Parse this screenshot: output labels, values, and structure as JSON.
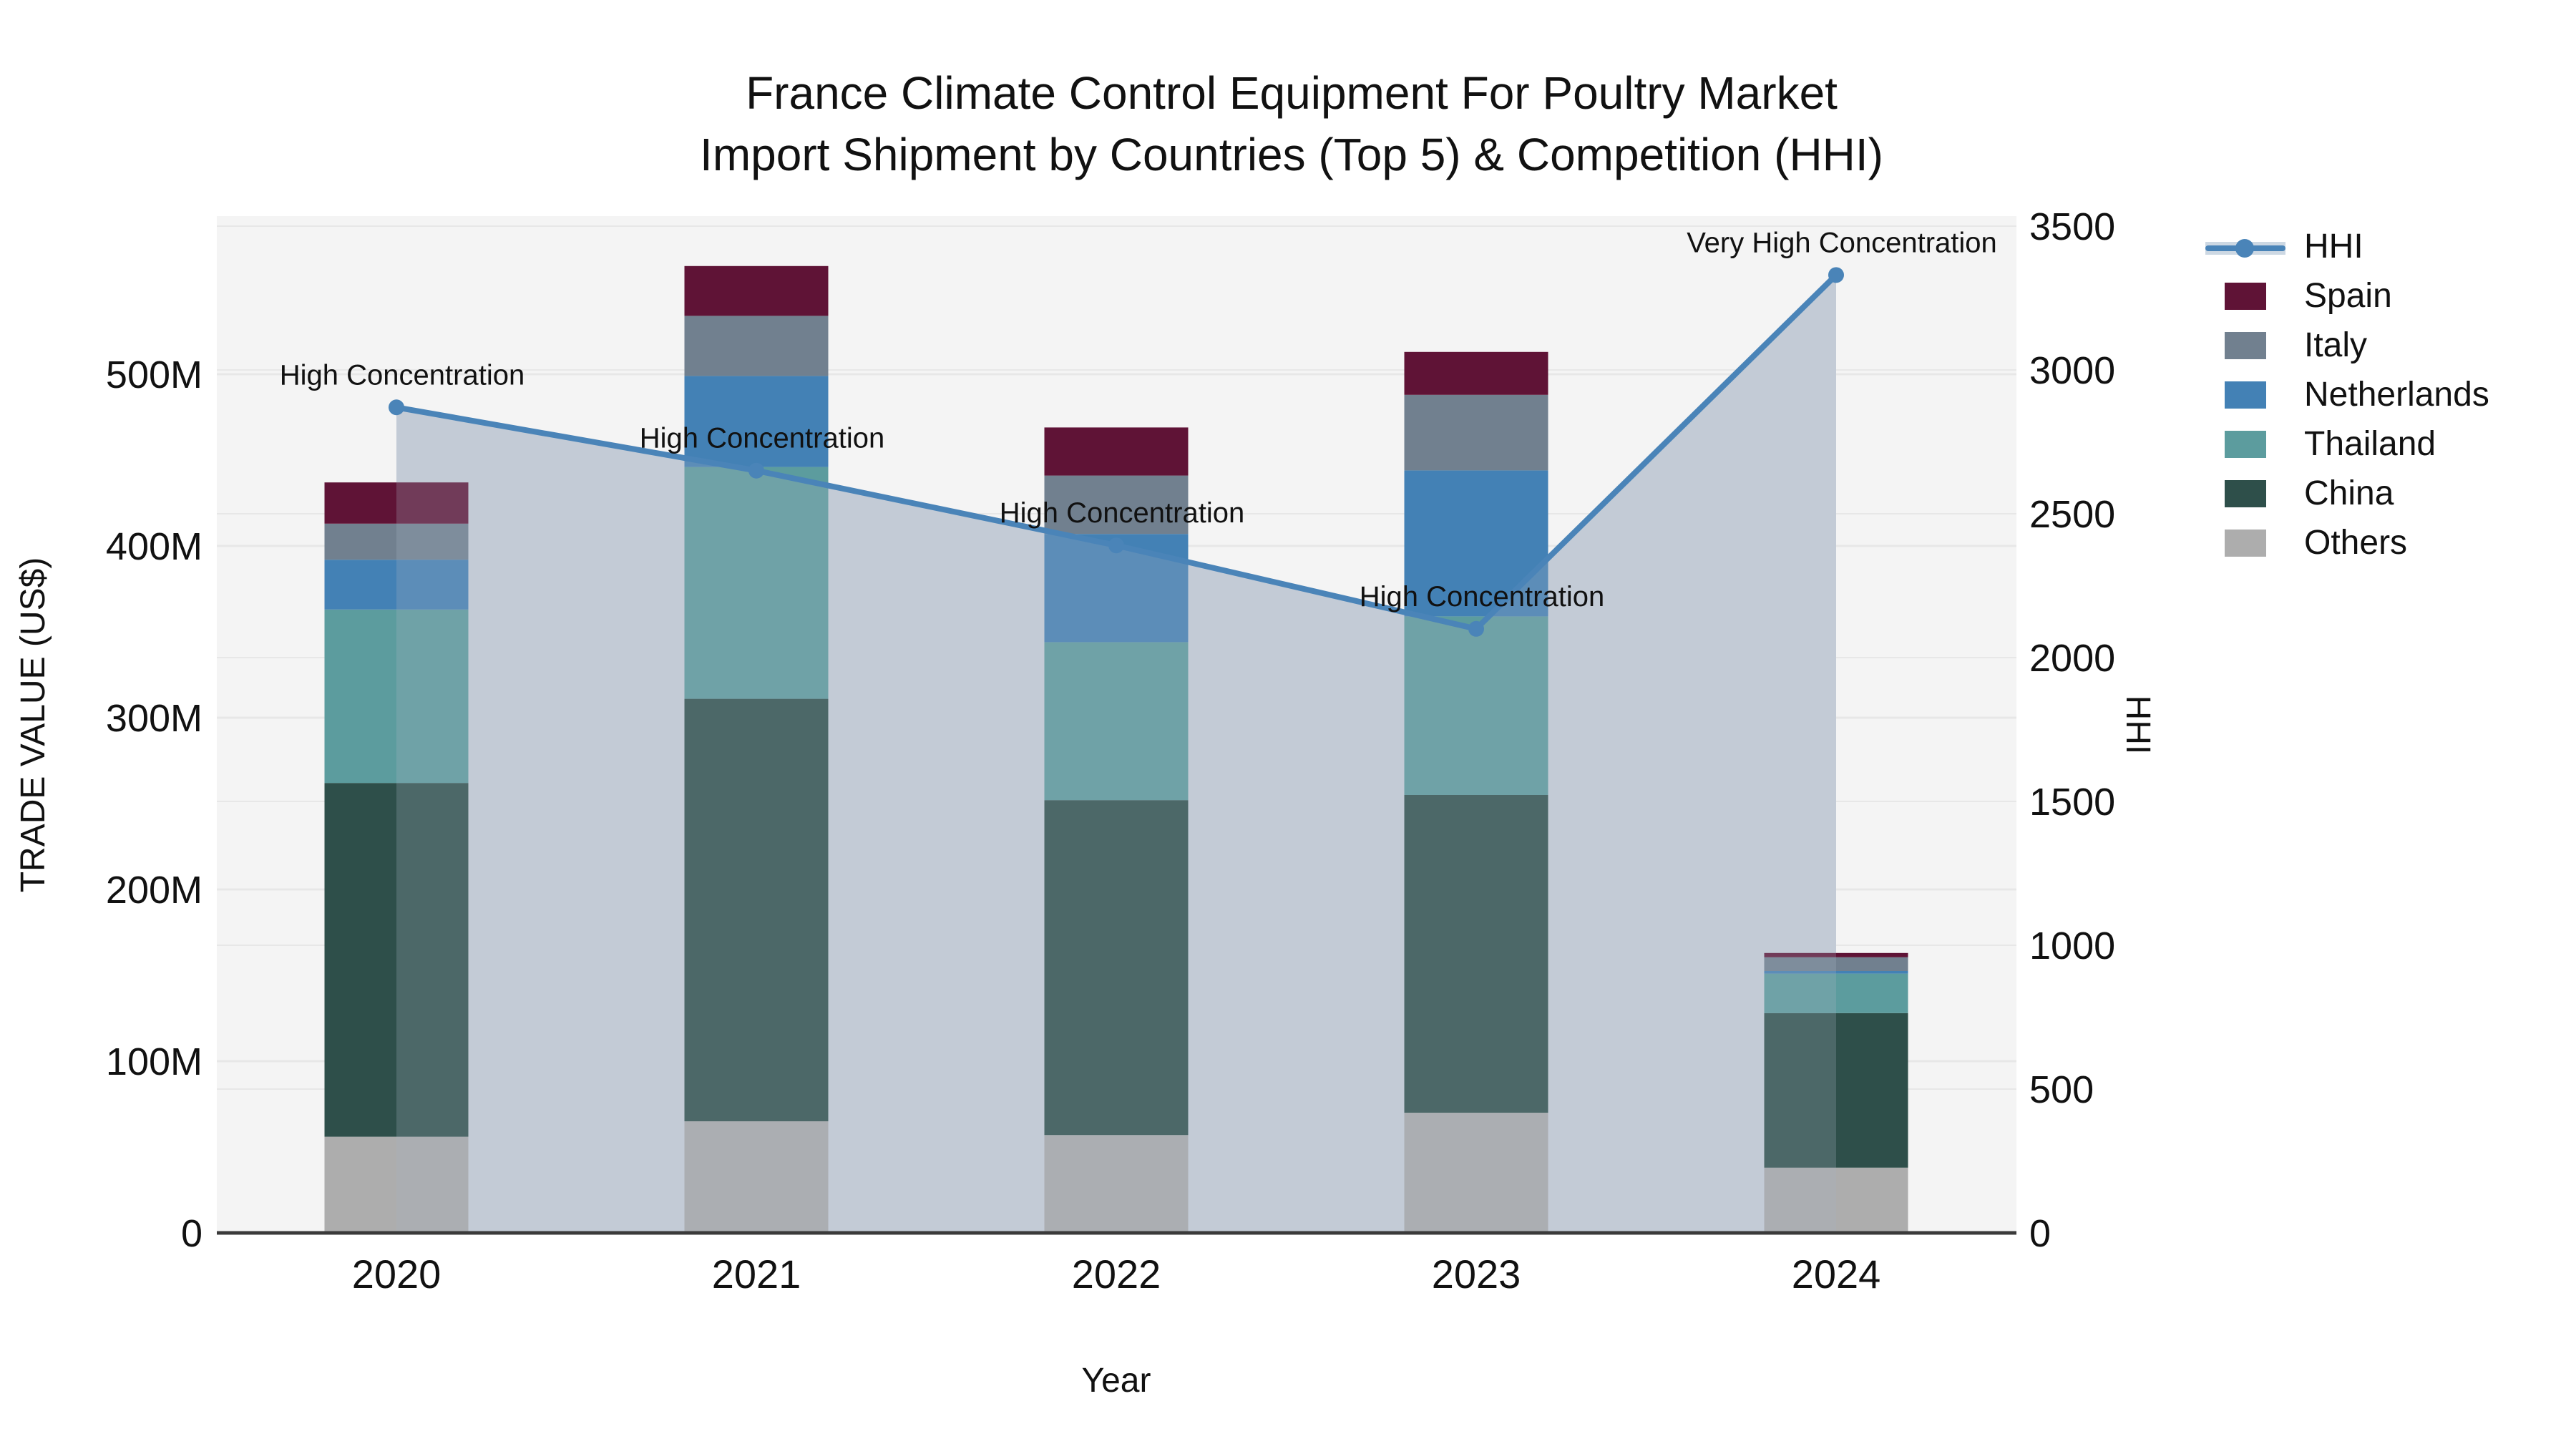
{
  "title": {
    "line1": "France Climate Control Equipment For Poultry Market",
    "line2": "Import Shipment by Countries (Top 5) & Competition (HHI)"
  },
  "axes": {
    "y_left_label": "TRADE VALUE (US$)",
    "y_right_label": "HHI",
    "x_label": "Year",
    "y_left_ticks": [
      {
        "value": 0,
        "label": "0"
      },
      {
        "value": 100,
        "label": "100M"
      },
      {
        "value": 200,
        "label": "200M"
      },
      {
        "value": 300,
        "label": "300M"
      },
      {
        "value": 400,
        "label": "400M"
      },
      {
        "value": 500,
        "label": "500M"
      }
    ],
    "y_right_ticks": [
      {
        "value": 0,
        "label": "0"
      },
      {
        "value": 500,
        "label": "500"
      },
      {
        "value": 1000,
        "label": "1000"
      },
      {
        "value": 1500,
        "label": "1500"
      },
      {
        "value": 2000,
        "label": "2000"
      },
      {
        "value": 2500,
        "label": "2500"
      },
      {
        "value": 3000,
        "label": "3000"
      },
      {
        "value": 3500,
        "label": "3500"
      }
    ]
  },
  "colors": {
    "spain": "#5F1336",
    "italy": "#71808F",
    "netherlands": "#4381B5",
    "thailand": "#5C9C9E",
    "china": "#2E4F4A",
    "others": "#ADADAD",
    "hhi_line": "#4A84B8",
    "area_fill": "#CDD3DC",
    "area_overlay": "rgba(166,178,196,0.25)",
    "plot_bg": "#F4F4F4",
    "gridline": "#E7E7E7",
    "axis_line": "#3A3A3A"
  },
  "legend": {
    "items": [
      {
        "label": "HHI",
        "type": "line",
        "color": "#4A84B8"
      },
      {
        "label": "Spain",
        "type": "swatch",
        "color": "#5F1336"
      },
      {
        "label": "Italy",
        "type": "swatch",
        "color": "#71808F"
      },
      {
        "label": "Netherlands",
        "type": "swatch",
        "color": "#4381B5"
      },
      {
        "label": "Thailand",
        "type": "swatch",
        "color": "#5C9C9E"
      },
      {
        "label": "China",
        "type": "swatch",
        "color": "#2E4F4A"
      },
      {
        "label": "Others",
        "type": "swatch",
        "color": "#ADADAD"
      }
    ]
  },
  "chart_data": {
    "type": "bar",
    "subtype": "stacked-bar-with-line",
    "title": "France Climate Control Equipment For Poultry Market\nImport Shipment by Countries (Top 5) & Competition (HHI)",
    "xlabel": "Year",
    "ylabel_left": "TRADE VALUE (US$)",
    "ylabel_right": "HHI",
    "categories": [
      "2020",
      "2021",
      "2022",
      "2023",
      "2024"
    ],
    "series": [
      {
        "name": "Others",
        "color": "#ADADAD",
        "values": [
          56,
          65,
          57,
          70,
          38
        ]
      },
      {
        "name": "China",
        "color": "#2E4F4A",
        "values": [
          206,
          246,
          195,
          185,
          90
        ]
      },
      {
        "name": "Thailand",
        "color": "#5C9C9E",
        "values": [
          101,
          135,
          92,
          104,
          23
        ]
      },
      {
        "name": "Netherlands",
        "color": "#4381B5",
        "values": [
          29,
          53,
          63,
          85,
          1.5
        ]
      },
      {
        "name": "Italy",
        "color": "#71808F",
        "values": [
          21,
          35,
          34,
          44,
          8
        ]
      },
      {
        "name": "Spain",
        "color": "#5F1336",
        "values": [
          24,
          29,
          28,
          25,
          2.5
        ]
      }
    ],
    "bar_totals_millions": [
      437.5,
      563,
      469.5,
      513.5,
      163
    ],
    "line_series": {
      "name": "HHI",
      "color": "#4A84B8",
      "values": [
        2870,
        2650,
        2390,
        2100,
        3330
      ],
      "area_fill": true
    },
    "annotations": [
      {
        "x": "2020",
        "text": "High Concentration"
      },
      {
        "x": "2021",
        "text": "High Concentration"
      },
      {
        "x": "2022",
        "text": "High Concentration"
      },
      {
        "x": "2023",
        "text": "High Concentration"
      },
      {
        "x": "2024",
        "text": "Very High Concentration"
      }
    ],
    "ylim_left_millions": [
      0,
      590
    ],
    "ylim_right": [
      0,
      3500
    ],
    "grid": true,
    "legend_position": "right"
  }
}
